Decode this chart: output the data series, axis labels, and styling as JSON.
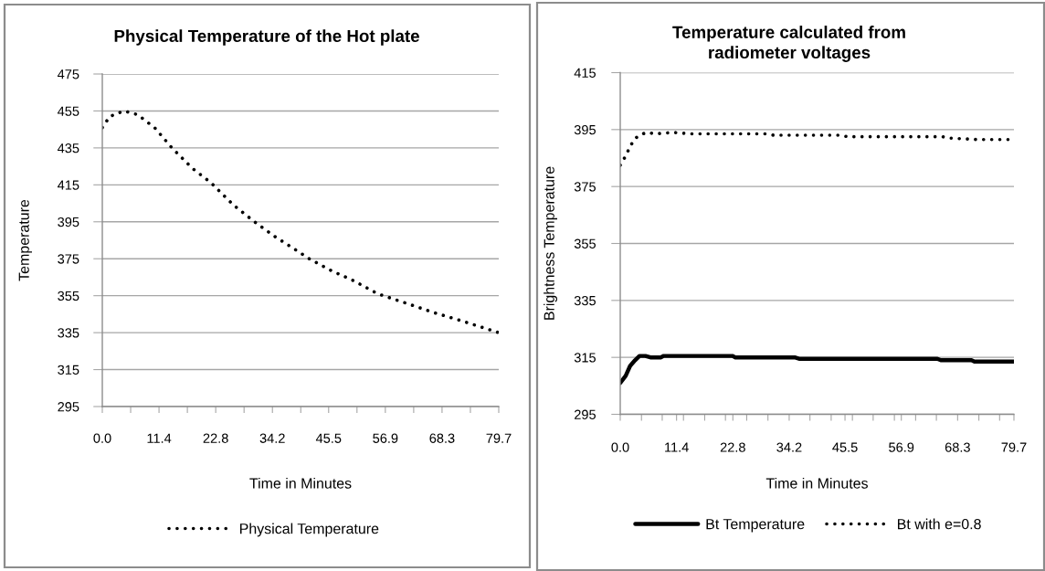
{
  "chart_data": [
    {
      "type": "line",
      "title": "Physical Temperature of the Hot plate",
      "xlabel": "Time in Minutes",
      "ylabel": "Temperature",
      "series": [
        {
          "name": "Physical Temperature",
          "color": "#000000",
          "line_style": "dotted",
          "x": [
            0,
            1.5,
            4.3,
            7.1,
            10.5,
            14.0,
            18.1,
            21.9,
            26.4,
            30.6,
            34.7,
            38.2,
            41.6,
            45.7,
            50.6,
            55.4,
            61.0,
            66.5,
            72.7,
            79.7
          ],
          "values": [
            446,
            452,
            455,
            453,
            446,
            435,
            424,
            416,
            404,
            395,
            387,
            381,
            375,
            369,
            363,
            356,
            351,
            346,
            341,
            335
          ]
        }
      ],
      "xlim": [
        0,
        79.7
      ],
      "xticks": [
        {
          "value": 0,
          "label": "0.0"
        },
        {
          "value": 5.7,
          "label": null
        },
        11.4,
        {
          "value": 17.1,
          "label": null
        },
        22.8,
        {
          "value": 28.5,
          "label": null
        },
        34.2,
        {
          "value": 39.9,
          "label": null
        },
        45.5,
        {
          "value": 51.2,
          "label": null
        },
        56.9,
        {
          "value": 62.6,
          "label": null
        },
        68.3,
        {
          "value": 74.0,
          "label": null
        },
        79.7
      ],
      "ylim": [
        295,
        475
      ],
      "yticks": [
        295,
        315,
        335,
        355,
        375,
        395,
        415,
        435,
        455,
        475
      ],
      "grid": "y",
      "legend": "bottom",
      "marker": "none"
    },
    {
      "type": "line",
      "title": "Temperature calculated from\nradiometer voltages",
      "xlabel": "Time in Minutes",
      "ylabel": "Brightness Temperature",
      "series": [
        {
          "name": "Bt Temperature",
          "color": "#000000",
          "line_style": "solid",
          "x": [
            0,
            1.1,
            2.0,
            3.0,
            3.9,
            5.1,
            6.1,
            8.2,
            8.8,
            22.7,
            23.3,
            35.3,
            36.2,
            64.2,
            64.9,
            71.1,
            71.7,
            79.7
          ],
          "values": [
            306,
            308.5,
            312,
            314,
            315.5,
            315.5,
            315,
            315,
            315.5,
            315.5,
            315,
            315,
            314.5,
            314.5,
            314,
            314,
            313.5,
            313.5
          ]
        },
        {
          "name": "Bt with e=0.8",
          "color": "#000000",
          "line_style": "dotted",
          "x": [
            0,
            0.7,
            1.3,
            2.0,
            2.8,
            3.8,
            5.4,
            7.1,
            10.7,
            14.3,
            29.5,
            31.1,
            44.4,
            46.1,
            65.2,
            66.8,
            72.3,
            79.7
          ],
          "values": [
            382.5,
            384.5,
            386.5,
            389,
            391.5,
            393,
            394,
            393.5,
            394,
            393.5,
            393.5,
            393,
            393,
            392.5,
            392.5,
            392,
            391.5,
            391.5
          ]
        }
      ],
      "xlim": [
        0,
        79.7
      ],
      "xticks": [
        {
          "value": 0,
          "label": "0.0"
        },
        {
          "value": 4.3,
          "label": null
        },
        {
          "value": 8.5,
          "label": null
        },
        11.4,
        {
          "value": 12.8,
          "label": null
        },
        {
          "value": 17.1,
          "label": null
        },
        {
          "value": 21.3,
          "label": null
        },
        22.8,
        {
          "value": 25.6,
          "label": null
        },
        {
          "value": 29.9,
          "label": null
        },
        34.2,
        {
          "value": 38.4,
          "label": null
        },
        {
          "value": 42.7,
          "label": null
        },
        45.5,
        {
          "value": 47.0,
          "label": null
        },
        {
          "value": 51.2,
          "label": null
        },
        {
          "value": 55.5,
          "label": null
        },
        56.9,
        {
          "value": 59.8,
          "label": null
        },
        {
          "value": 64.0,
          "label": null
        },
        68.3,
        {
          "value": 72.6,
          "label": null
        },
        {
          "value": 76.8,
          "label": null
        },
        79.7
      ],
      "ylim": [
        295,
        415
      ],
      "yticks": [
        295,
        315,
        335,
        355,
        375,
        395,
        415
      ],
      "grid": "y",
      "legend": "bottom",
      "marker": "none"
    }
  ]
}
